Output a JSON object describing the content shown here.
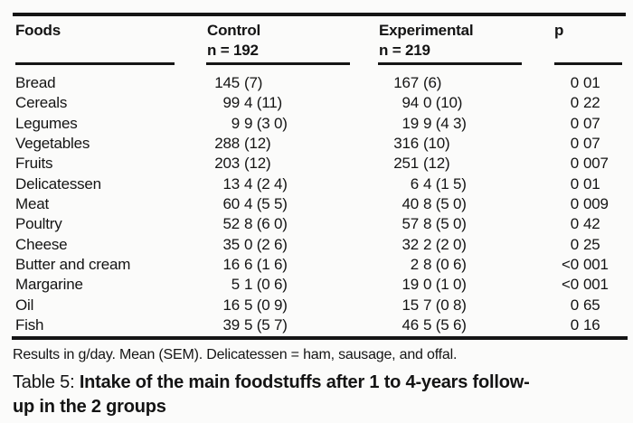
{
  "table": {
    "header": {
      "foods": "Foods",
      "control": "Control",
      "control_n": "n = 192",
      "experimental": "Experimental",
      "experimental_n": "n = 219",
      "p": "p"
    },
    "rows": [
      {
        "food": "Bread",
        "control": "145 (7)",
        "experimental": "167 (6)",
        "p": "0 01"
      },
      {
        "food": "Cereals",
        "control": "99 4 (11)",
        "experimental": "94 0 (10)",
        "p": "0 22"
      },
      {
        "food": "Legumes",
        "control": "9 9 (3 0)",
        "experimental": "19 9 (4 3)",
        "p": "0 07"
      },
      {
        "food": "Vegetables",
        "control": "288 (12)",
        "experimental": "316 (10)",
        "p": "0 07"
      },
      {
        "food": "Fruits",
        "control": "203 (12)",
        "experimental": "251 (12)",
        "p": "0 007"
      },
      {
        "food": "Delicatessen",
        "control": "13 4 (2 4)",
        "experimental": "6 4 (1 5)",
        "p": "0 01"
      },
      {
        "food": "Meat",
        "control": "60 4 (5 5)",
        "experimental": "40 8 (5 0)",
        "p": "0 009"
      },
      {
        "food": "Poultry",
        "control": "52 8 (6 0)",
        "experimental": "57 8 (5 0)",
        "p": "0 42"
      },
      {
        "food": "Cheese",
        "control": "35 0 (2 6)",
        "experimental": "32 2 (2 0)",
        "p": "0 25"
      },
      {
        "food": "Butter and cream",
        "control": "16 6 (1 6)",
        "experimental": "2 8 (0 6)",
        "p": "<0 001"
      },
      {
        "food": "Margarine",
        "control": "5 1 (0 6)",
        "experimental": "19 0 (1 0)",
        "p": "<0 001"
      },
      {
        "food": "Oil",
        "control": "16 5 (0 9)",
        "experimental": "15 7 (0 8)",
        "p": "0 65"
      },
      {
        "food": "Fish",
        "control": "39 5 (5 7)",
        "experimental": "46 5 (5 6)",
        "p": "0 16"
      }
    ],
    "footnote": "Results in g/day. Mean (SEM). Delicatessen = ham, sausage, and offal.",
    "caption_prefix": "Table 5: ",
    "caption_bold": "Intake of the main foodstuffs after 1 to 4-years follow-up in the 2 groups"
  },
  "colors": {
    "background": "#fbfbfa",
    "text": "#141414",
    "rule": "#151515"
  }
}
